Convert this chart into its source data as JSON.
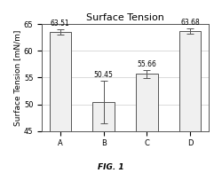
{
  "categories": [
    "A",
    "B",
    "C",
    "D"
  ],
  "values": [
    63.51,
    50.45,
    55.66,
    63.68
  ],
  "errors": [
    0.5,
    4.0,
    0.8,
    0.5
  ],
  "bar_color": "#f0f0f0",
  "bar_edgecolor": "#555555",
  "title": "Surface Tension",
  "ylabel": "Surface Tension [mN/m]",
  "ylim": [
    45,
    65
  ],
  "yticks": [
    45,
    50,
    55,
    60,
    65
  ],
  "fig_label": "FIG. 1",
  "title_fontsize": 8,
  "label_fontsize": 6.5,
  "tick_fontsize": 6,
  "value_fontsize": 5.5,
  "background_color": "#ffffff"
}
